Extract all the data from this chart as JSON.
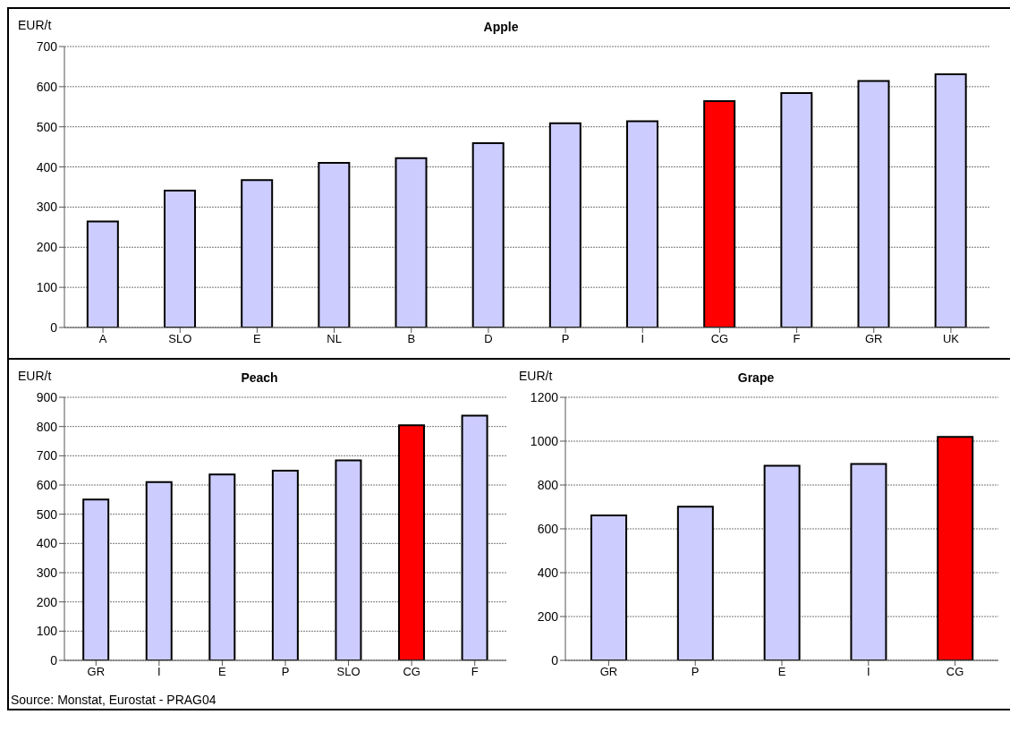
{
  "chart_data": [
    {
      "type": "bar",
      "title": "Apple",
      "ylabel": "EUR/t",
      "categories": [
        "A",
        "SLO",
        "E",
        "NL",
        "B",
        "D",
        "P",
        "I",
        "CG",
        "F",
        "GR",
        "UK"
      ],
      "values": [
        264,
        341,
        367,
        410,
        422,
        459,
        509,
        514,
        564,
        584,
        614,
        631
      ],
      "colors": [
        "#ccccff",
        "#ccccff",
        "#ccccff",
        "#ccccff",
        "#ccccff",
        "#ccccff",
        "#ccccff",
        "#ccccff",
        "#ff0000",
        "#ccccff",
        "#ccccff",
        "#ccccff"
      ],
      "ylim": [
        0,
        700
      ],
      "yticks": [
        0,
        100,
        200,
        300,
        400,
        500,
        600,
        700
      ],
      "grid": "y"
    },
    {
      "type": "bar",
      "title": "Peach",
      "ylabel": "EUR/t",
      "categories": [
        "GR",
        "I",
        "E",
        "P",
        "SLO",
        "CG",
        "F"
      ],
      "values": [
        550,
        610,
        636,
        649,
        684,
        804,
        837
      ],
      "colors": [
        "#ccccff",
        "#ccccff",
        "#ccccff",
        "#ccccff",
        "#ccccff",
        "#ff0000",
        "#ccccff"
      ],
      "ylim": [
        0,
        900
      ],
      "yticks": [
        0,
        100,
        200,
        300,
        400,
        500,
        600,
        700,
        800,
        900
      ],
      "grid": "y",
      "annotations": [
        "Source: Monstat, Eurostat - PRAG04"
      ]
    },
    {
      "type": "bar",
      "title": "Grape",
      "ylabel": "EUR/t",
      "categories": [
        "GR",
        "P",
        "E",
        "I",
        "CG"
      ],
      "values": [
        661,
        701,
        888,
        896,
        1019
      ],
      "colors": [
        "#ccccff",
        "#ccccff",
        "#ccccff",
        "#ccccff",
        "#ff0000"
      ],
      "ylim": [
        0,
        1200
      ],
      "yticks": [
        0,
        200,
        400,
        600,
        800,
        1000,
        1200
      ],
      "grid": "y"
    }
  ]
}
